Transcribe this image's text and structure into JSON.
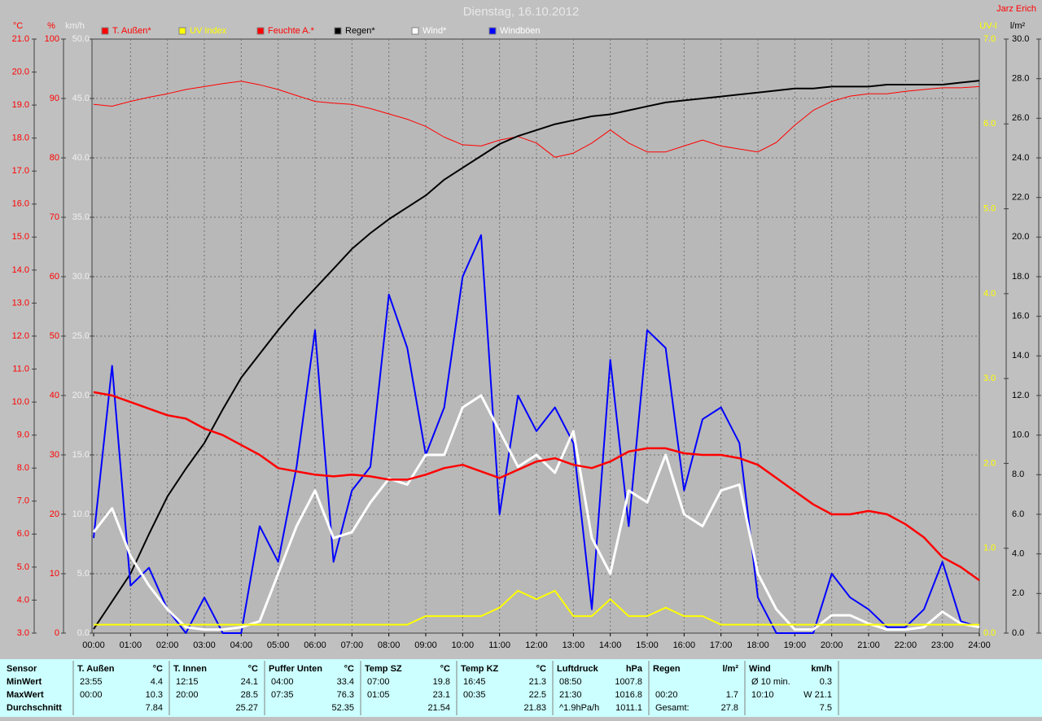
{
  "chart_data": {
    "type": "line",
    "title": "Dienstag, 16.10.2012",
    "author": "Jarz Erich",
    "grid": true,
    "x": [
      0,
      0.5,
      1,
      1.5,
      2,
      2.5,
      3,
      3.5,
      4,
      4.5,
      5,
      5.5,
      6,
      6.5,
      7,
      7.5,
      8,
      8.5,
      9,
      9.5,
      10,
      10.5,
      11,
      11.5,
      12,
      12.5,
      13,
      13.5,
      14,
      14.5,
      15,
      15.5,
      16,
      16.5,
      17,
      17.5,
      18,
      18.5,
      19,
      19.5,
      20,
      20.5,
      21,
      21.5,
      22,
      22.5,
      23,
      23.5,
      24
    ],
    "xlim": [
      0,
      24
    ],
    "xticks": [
      {
        "value": 0,
        "label": "00:00"
      },
      {
        "value": 1,
        "label": "01:00"
      },
      {
        "value": 2,
        "label": "02:00"
      },
      {
        "value": 3,
        "label": "03:00"
      },
      {
        "value": 4,
        "label": "04:00"
      },
      {
        "value": 5,
        "label": "05:00"
      },
      {
        "value": 6,
        "label": "06:00"
      },
      {
        "value": 7,
        "label": "07:00"
      },
      {
        "value": 8,
        "label": "08:00"
      },
      {
        "value": 9,
        "label": "09:00"
      },
      {
        "value": 10,
        "label": "10:00"
      },
      {
        "value": 11,
        "label": "11:00"
      },
      {
        "value": 12,
        "label": "12:00"
      },
      {
        "value": 13,
        "label": "13:00"
      },
      {
        "value": 14,
        "label": "14:00"
      },
      {
        "value": 15,
        "label": "15:00"
      },
      {
        "value": 16,
        "label": "16:00"
      },
      {
        "value": 17,
        "label": "17:00"
      },
      {
        "value": 18,
        "label": "18:00"
      },
      {
        "value": 19,
        "label": "19:00"
      },
      {
        "value": 20,
        "label": "20:00"
      },
      {
        "value": 21,
        "label": "21:00"
      },
      {
        "value": 22,
        "label": "22:00"
      },
      {
        "value": 23,
        "label": "23:00"
      },
      {
        "value": 24,
        "label": "24:00"
      }
    ],
    "axes": [
      {
        "label": "°C",
        "color": "#ff0000",
        "lim": [
          3,
          21
        ],
        "ticks": [
          {
            "value": 3,
            "label": "3.0"
          },
          {
            "value": 4,
            "label": "4.0"
          },
          {
            "value": 5,
            "label": "5.0"
          },
          {
            "value": 6,
            "label": "6.0"
          },
          {
            "value": 7,
            "label": "7.0"
          },
          {
            "value": 8,
            "label": "8.0"
          },
          {
            "value": 9,
            "label": "9.0"
          },
          {
            "value": 10,
            "label": "10.0"
          },
          {
            "value": 11,
            "label": "11.0"
          },
          {
            "value": 12,
            "label": "12.0"
          },
          {
            "value": 13,
            "label": "13.0"
          },
          {
            "value": 14,
            "label": "14.0"
          },
          {
            "value": 15,
            "label": "15.0"
          },
          {
            "value": 16,
            "label": "16.0"
          },
          {
            "value": 17,
            "label": "17.0"
          },
          {
            "value": 18,
            "label": "18.0"
          },
          {
            "value": 19,
            "label": "19.0"
          },
          {
            "value": 20,
            "label": "20.0"
          },
          {
            "value": 21,
            "label": "21.0"
          }
        ]
      },
      {
        "label": "%",
        "color": "#ff0000",
        "lim": [
          0,
          100
        ],
        "ticks": [
          0,
          10,
          20,
          30,
          40,
          50,
          60,
          70,
          80,
          90,
          100
        ]
      },
      {
        "label": "km/h",
        "color": "#f0f0f0",
        "lim": [
          0,
          50
        ],
        "grid": true,
        "ticks": [
          {
            "value": 0,
            "label": "0.0"
          },
          {
            "value": 5,
            "label": "5.0"
          },
          {
            "value": 10,
            "label": "10.0"
          },
          {
            "value": 15,
            "label": "15.0"
          },
          {
            "value": 20,
            "label": "20.0"
          },
          {
            "value": 25,
            "label": "25.0"
          },
          {
            "value": 30,
            "label": "30.0"
          },
          {
            "value": 35,
            "label": "35.0"
          },
          {
            "value": 40,
            "label": "40.0"
          },
          {
            "value": 45,
            "label": "45.0"
          },
          {
            "value": 50,
            "label": "50.0"
          }
        ]
      },
      {
        "label": "UV-I",
        "color": "#ffff00",
        "lim": [
          0,
          7
        ],
        "ticks": [
          {
            "value": 0,
            "label": "0.0"
          },
          {
            "value": 1,
            "label": "1.0"
          },
          {
            "value": 2,
            "label": "2.0"
          },
          {
            "value": 3,
            "label": "3.0"
          },
          {
            "value": 4,
            "label": "4.0"
          },
          {
            "value": 5,
            "label": "5.0"
          },
          {
            "value": 6,
            "label": "6.0"
          },
          {
            "value": 7,
            "label": "7.0"
          }
        ]
      },
      {
        "label": "l/m²",
        "color": "#000000",
        "lim": [
          0,
          30
        ],
        "ticks": [
          {
            "value": 0,
            "label": "0.0"
          },
          {
            "value": 2,
            "label": "2.0"
          },
          {
            "value": 4,
            "label": "4.0"
          },
          {
            "value": 6,
            "label": "6.0"
          },
          {
            "value": 8,
            "label": "8.0"
          },
          {
            "value": 10,
            "label": "10.0"
          },
          {
            "value": 12,
            "label": "12.0"
          },
          {
            "value": 14,
            "label": "14.0"
          },
          {
            "value": 16,
            "label": "16.0"
          },
          {
            "value": 18,
            "label": "18.0"
          },
          {
            "value": 20,
            "label": "20.0"
          },
          {
            "value": 22,
            "label": "22.0"
          },
          {
            "value": 24,
            "label": "24.0"
          },
          {
            "value": 26,
            "label": "26.0"
          },
          {
            "value": 28,
            "label": "28.0"
          },
          {
            "value": 30,
            "label": "30.0"
          }
        ]
      }
    ],
    "series": [
      {
        "name": "T. Außen*",
        "color": "#ff0000",
        "legend_color": "#ff0000",
        "axis": 0,
        "values": [
          10.3,
          10.2,
          10.0,
          9.8,
          9.6,
          9.5,
          9.2,
          9.0,
          8.7,
          8.4,
          8.0,
          7.9,
          7.8,
          7.75,
          7.8,
          7.75,
          7.65,
          7.65,
          7.8,
          8.0,
          8.1,
          7.9,
          7.7,
          7.95,
          8.2,
          8.3,
          8.1,
          8.0,
          8.2,
          8.5,
          8.6,
          8.6,
          8.45,
          8.4,
          8.4,
          8.3,
          8.1,
          7.7,
          7.3,
          6.9,
          6.6,
          6.6,
          6.7,
          6.6,
          6.3,
          5.9,
          5.3,
          5.0,
          4.6
        ]
      },
      {
        "name": "UV Index",
        "color": "#ffff00",
        "legend_color": "#ffff00",
        "axis": 3,
        "values": [
          0.1,
          0.1,
          0.1,
          0.1,
          0.1,
          0.1,
          0.1,
          0.1,
          0.1,
          0.1,
          0.1,
          0.1,
          0.1,
          0.1,
          0.1,
          0.1,
          0.1,
          0.1,
          0.2,
          0.2,
          0.2,
          0.2,
          0.3,
          0.5,
          0.4,
          0.5,
          0.2,
          0.2,
          0.4,
          0.2,
          0.2,
          0.3,
          0.2,
          0.2,
          0.1,
          0.1,
          0.1,
          0.1,
          0.1,
          0.1,
          0.1,
          0.1,
          0.1,
          0.1,
          0.1,
          0.1,
          0.1,
          0.1,
          0.1
        ]
      },
      {
        "name": "Feuchte A.*",
        "color": "#ff0000",
        "legend_color": "#ff0000",
        "axis": 1,
        "values": [
          89,
          88.7,
          89.5,
          90.2,
          90.8,
          91.5,
          92,
          92.5,
          92.9,
          92.3,
          91.5,
          90.5,
          89.5,
          89.2,
          89,
          88.3,
          87.4,
          86.5,
          85.3,
          83.5,
          82.2,
          82,
          83,
          83.6,
          82.5,
          80.1,
          80.8,
          82.5,
          84.7,
          82.5,
          81,
          81,
          82,
          83,
          82,
          81.5,
          81,
          82.6,
          85.5,
          88,
          89.5,
          90.4,
          90.8,
          90.8,
          91.2,
          91.5,
          91.8,
          91.8,
          92
        ]
      },
      {
        "name": "Regen*",
        "color": "#000000",
        "legend_color": "#000000",
        "axis": 4,
        "values": [
          0.2,
          1.6,
          3.0,
          5.0,
          6.9,
          8.3,
          9.6,
          11.3,
          12.9,
          14.1,
          15.3,
          16.4,
          17.4,
          18.4,
          19.4,
          20.2,
          20.9,
          21.5,
          22.1,
          22.9,
          23.5,
          24.1,
          24.7,
          25.1,
          25.4,
          25.7,
          25.9,
          26.1,
          26.2,
          26.4,
          26.6,
          26.8,
          26.9,
          27.0,
          27.1,
          27.2,
          27.3,
          27.4,
          27.5,
          27.5,
          27.6,
          27.6,
          27.6,
          27.7,
          27.7,
          27.7,
          27.7,
          27.8,
          27.9
        ]
      },
      {
        "name": "Wind*",
        "color": "#ffffff",
        "legend_color": "#ffffff",
        "axis": 2,
        "values": [
          8.5,
          10.5,
          6.5,
          4,
          2,
          0.5,
          0.3,
          0.3,
          0.5,
          1,
          5,
          9,
          12,
          8,
          8.5,
          11,
          13,
          12.5,
          15,
          15,
          19,
          20,
          17,
          14,
          15,
          13.5,
          17,
          8,
          5,
          12,
          11,
          15,
          10,
          9,
          12,
          12.5,
          5,
          2,
          0.3,
          0.3,
          1.5,
          1.5,
          0.8,
          0.3,
          0.3,
          0.5,
          1.8,
          0.8,
          0.5
        ]
      },
      {
        "name": "Windböen",
        "color": "#0000ff",
        "legend_color": "#ffffff",
        "axis": 2,
        "values": [
          8,
          22.5,
          4,
          5.5,
          2,
          0,
          3,
          0,
          0,
          9,
          6,
          14,
          25.5,
          6,
          12,
          14,
          28.5,
          24,
          15,
          19,
          30,
          33.5,
          10,
          20,
          17,
          19,
          16,
          2,
          23,
          9,
          25.5,
          24,
          12,
          18,
          19,
          16,
          3,
          0,
          0,
          0,
          5,
          3,
          2,
          0.5,
          0.5,
          2,
          6,
          1,
          0.5
        ]
      }
    ]
  },
  "table": {
    "row_labels": [
      "Sensor",
      "MinWert",
      "MaxWert",
      "Durchschnitt"
    ],
    "groups": [
      {
        "name": "T. Außen",
        "unit": "°C",
        "rows": [
          [
            "23:55",
            "4.4"
          ],
          [
            "00:00",
            "10.3"
          ],
          [
            null,
            "7.84"
          ]
        ]
      },
      {
        "name": "T. Innen",
        "unit": "°C",
        "rows": [
          [
            "12:15",
            "24.1"
          ],
          [
            "20:00",
            "28.5"
          ],
          [
            null,
            "25.27"
          ]
        ]
      },
      {
        "name": "Puffer Unten",
        "unit": "°C",
        "rows": [
          [
            "04:00",
            "33.4"
          ],
          [
            "07:35",
            "76.3"
          ],
          [
            null,
            "52.35"
          ]
        ]
      },
      {
        "name": "Temp SZ",
        "unit": "°C",
        "rows": [
          [
            "07:00",
            "19.8"
          ],
          [
            "01:05",
            "23.1"
          ],
          [
            null,
            "21.54"
          ]
        ]
      },
      {
        "name": "Temp KZ",
        "unit": "°C",
        "rows": [
          [
            "16:45",
            "21.3"
          ],
          [
            "00:35",
            "22.5"
          ],
          [
            null,
            "21.83"
          ]
        ]
      },
      {
        "name": "Luftdruck",
        "unit": "hPa",
        "rows": [
          [
            "08:50",
            "1007.8"
          ],
          [
            "21:30",
            "1016.8"
          ],
          [
            "^1.9hPa/h",
            "1011.1"
          ]
        ]
      },
      {
        "name": "Regen",
        "unit": "l/m²",
        "rows": [
          [
            null,
            null
          ],
          [
            "00:20",
            "1.7"
          ],
          [
            "Gesamt:",
            "27.8"
          ]
        ]
      },
      {
        "name": "Wind",
        "unit": "km/h",
        "rows": [
          [
            "Ø 10 min.",
            "0.3"
          ],
          [
            "10:10",
            "W 21.1"
          ],
          [
            null,
            "7.5"
          ]
        ]
      }
    ]
  }
}
